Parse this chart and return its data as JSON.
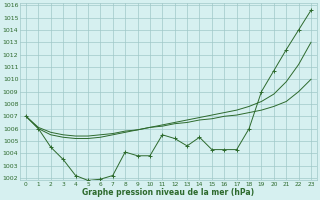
{
  "x": [
    0,
    1,
    2,
    3,
    4,
    5,
    6,
    7,
    8,
    9,
    10,
    11,
    12,
    13,
    14,
    15,
    16,
    17,
    18,
    19,
    20,
    21,
    22,
    23
  ],
  "line1": [
    1007,
    1006,
    1004.5,
    1003.5,
    1002.2,
    1001.8,
    1001.9,
    1002.2,
    1004.1,
    1003.8,
    1003.8,
    1005.5,
    1005.2,
    1004.6,
    1005.3,
    1004.3,
    1004.3,
    1004.3,
    1006.0,
    1009.0,
    1010.7,
    1012.4,
    1014.0,
    1015.6
  ],
  "line2": [
    1007,
    1006.1,
    1005.7,
    1005.5,
    1005.4,
    1005.4,
    1005.5,
    1005.6,
    1005.8,
    1005.9,
    1006.1,
    1006.2,
    1006.4,
    1006.5,
    1006.7,
    1006.8,
    1007.0,
    1007.1,
    1007.3,
    1007.5,
    1007.8,
    1008.2,
    1009.0,
    1010.0
  ],
  "line3": [
    1007,
    1006.0,
    1005.5,
    1005.3,
    1005.2,
    1005.2,
    1005.3,
    1005.5,
    1005.7,
    1005.9,
    1006.1,
    1006.3,
    1006.5,
    1006.7,
    1006.9,
    1007.1,
    1007.3,
    1007.5,
    1007.8,
    1008.2,
    1008.8,
    1009.8,
    1011.2,
    1013.0
  ],
  "ymin": 1002,
  "ymax": 1016,
  "yticks": [
    1002,
    1003,
    1004,
    1005,
    1006,
    1007,
    1008,
    1009,
    1010,
    1011,
    1012,
    1013,
    1014,
    1015,
    1016
  ],
  "xticks": [
    0,
    1,
    2,
    3,
    4,
    5,
    6,
    7,
    8,
    9,
    10,
    11,
    12,
    13,
    14,
    15,
    16,
    17,
    18,
    19,
    20,
    21,
    22,
    23
  ],
  "xlabel": "Graphe pression niveau de la mer (hPa)",
  "line_color": "#2d6a2d",
  "bg_color": "#d6f0f0",
  "grid_color": "#a0c8c8",
  "tick_label_color": "#2d6a2d",
  "xlabel_color": "#2d6a2d"
}
